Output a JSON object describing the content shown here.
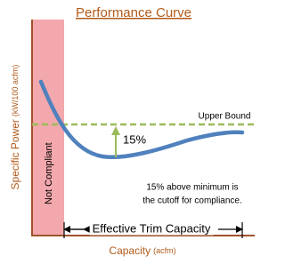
{
  "title": "Performance Curve",
  "y_axis_label": {
    "main": "Specific Power",
    "unit": "(kW/100 acfm)"
  },
  "x_axis_label": {
    "main": "Capacity",
    "unit": "(acfm)"
  },
  "region_label": "Not Compliant",
  "line_label": "Upper Bound",
  "arrow_label": "15%",
  "note": [
    "15% above minimum is",
    "the cutoff for compliance."
  ],
  "range_label": "Effective Trim Capacity"
}
